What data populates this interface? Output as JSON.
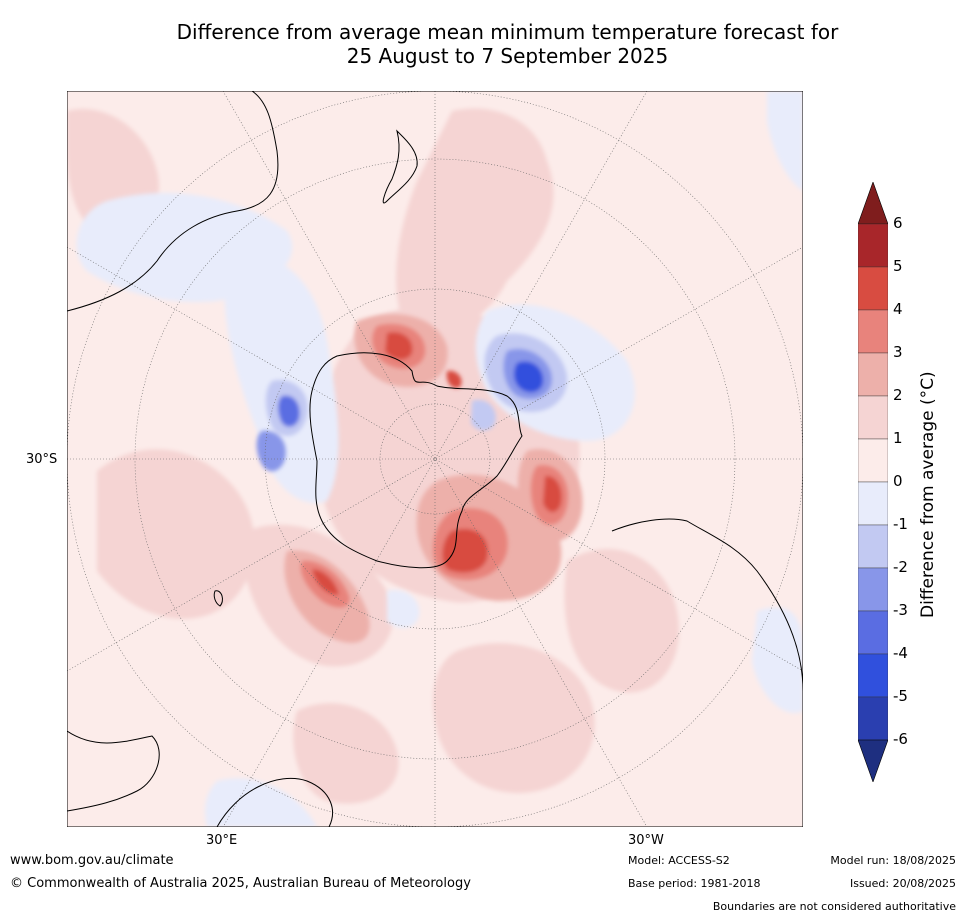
{
  "title_line1": "Difference from average mean minimum temperature forecast for",
  "title_line2": "25 August to 7 September 2025",
  "axis_labels": {
    "lat": "30°S",
    "lon_left": "30°E",
    "lon_right": "30°W"
  },
  "colorbar": {
    "label": "Difference from average (°C)",
    "ticks": [
      "6",
      "5",
      "4",
      "3",
      "2",
      "1",
      "0",
      "-1",
      "-2",
      "-3",
      "-4",
      "-5",
      "-6"
    ],
    "colors": [
      "#7f1d1d",
      "#a8262a",
      "#d84c41",
      "#e8837c",
      "#edb0aa",
      "#f5d4d3",
      "#fcecea",
      "#e8ecfb",
      "#c2c9f2",
      "#8896e9",
      "#5a6de2",
      "#3050dd",
      "#2a3fb0",
      "#1e2f80"
    ]
  },
  "footer": {
    "website": "www.bom.gov.au/climate",
    "copyright": "© Commonwealth of Australia 2025, Australian Bureau of Meteorology",
    "model": "Model: ACCESS-S2",
    "base_period": "Base period: 1981-2018",
    "model_run": "Model run: 18/08/2025",
    "issued": "Issued: 20/08/2025",
    "disclaimer": "Boundaries are not considered authoritative"
  }
}
